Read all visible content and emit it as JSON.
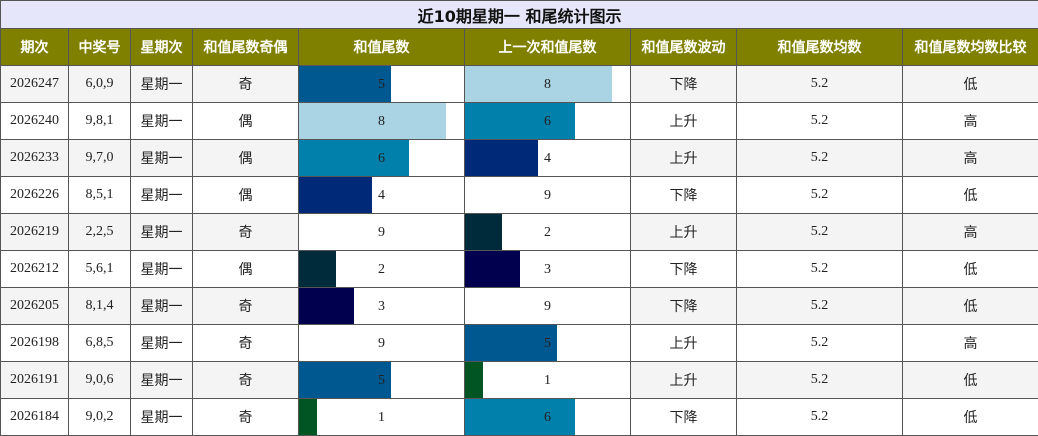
{
  "title": "近10期星期一 和尾统计图示",
  "headers": [
    "期次",
    "中奖号",
    "星期次",
    "和值尾数奇偶",
    "和值尾数",
    "上一次和值尾数",
    "和值尾数波动",
    "和值尾数均数",
    "和值尾数均数比较"
  ],
  "digit_colors": {
    "1": "#005522",
    "2": "#002b3b",
    "3": "#00004f",
    "4": "#002a77",
    "5": "#005891",
    "6": "#0080aa",
    "8": "#aad4e4",
    "9": "#ffffff"
  },
  "rows": [
    {
      "issue": "2026247",
      "numbers": "6,0,9",
      "weekday": "星期一",
      "parity": "奇",
      "tail": 5,
      "prev_tail": 8,
      "trend": "下降",
      "avg": "5.2",
      "compare": "低"
    },
    {
      "issue": "2026240",
      "numbers": "9,8,1",
      "weekday": "星期一",
      "parity": "偶",
      "tail": 8,
      "prev_tail": 6,
      "trend": "上升",
      "avg": "5.2",
      "compare": "高"
    },
    {
      "issue": "2026233",
      "numbers": "9,7,0",
      "weekday": "星期一",
      "parity": "偶",
      "tail": 6,
      "prev_tail": 4,
      "trend": "上升",
      "avg": "5.2",
      "compare": "高"
    },
    {
      "issue": "2026226",
      "numbers": "8,5,1",
      "weekday": "星期一",
      "parity": "偶",
      "tail": 4,
      "prev_tail": 9,
      "trend": "下降",
      "avg": "5.2",
      "compare": "低"
    },
    {
      "issue": "2026219",
      "numbers": "2,2,5",
      "weekday": "星期一",
      "parity": "奇",
      "tail": 9,
      "prev_tail": 2,
      "trend": "上升",
      "avg": "5.2",
      "compare": "高"
    },
    {
      "issue": "2026212",
      "numbers": "5,6,1",
      "weekday": "星期一",
      "parity": "偶",
      "tail": 2,
      "prev_tail": 3,
      "trend": "下降",
      "avg": "5.2",
      "compare": "低"
    },
    {
      "issue": "2026205",
      "numbers": "8,1,4",
      "weekday": "星期一",
      "parity": "奇",
      "tail": 3,
      "prev_tail": 9,
      "trend": "下降",
      "avg": "5.2",
      "compare": "低"
    },
    {
      "issue": "2026198",
      "numbers": "6,8,5",
      "weekday": "星期一",
      "parity": "奇",
      "tail": 9,
      "prev_tail": 5,
      "trend": "上升",
      "avg": "5.2",
      "compare": "高"
    },
    {
      "issue": "2026191",
      "numbers": "9,0,6",
      "weekday": "星期一",
      "parity": "奇",
      "tail": 5,
      "prev_tail": 1,
      "trend": "上升",
      "avg": "5.2",
      "compare": "低"
    },
    {
      "issue": "2026184",
      "numbers": "9,0,2",
      "weekday": "星期一",
      "parity": "奇",
      "tail": 1,
      "prev_tail": 6,
      "trend": "下降",
      "avg": "5.2",
      "compare": "低"
    }
  ]
}
